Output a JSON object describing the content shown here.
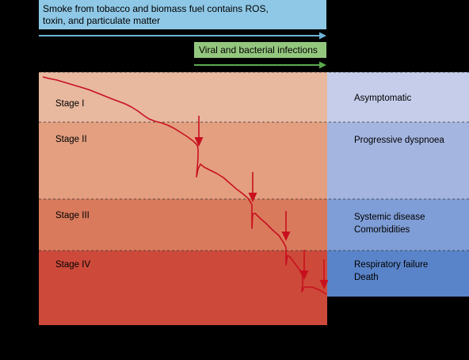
{
  "banners": {
    "smoke": "Smoke from tobacco and biomass fuel contains ROS,\ntoxin, and particulate matter",
    "infections": "Viral and bacterial infections"
  },
  "stages": [
    {
      "label": "Stage I",
      "color": "#e8b89f"
    },
    {
      "label": "Stage II",
      "color": "#e39f80"
    },
    {
      "label": "Stage III",
      "color": "#d97a5c"
    },
    {
      "label": "Stage IV",
      "color": "#cd4a3a"
    }
  ],
  "symptoms": [
    {
      "line1": "Asymptomatic",
      "line2": "",
      "color": "#c5cdea"
    },
    {
      "line1": "Progressive dyspnoea",
      "line2": "",
      "color": "#a4b5e0"
    },
    {
      "line1": "Systemic disease",
      "line2": "Comorbidities",
      "color": "#7f9dd6"
    },
    {
      "line1": "Respiratory failure",
      "line2": "Death",
      "color": "#5a84c9"
    }
  ],
  "colors": {
    "decline_curve": "#c8101e",
    "arrow_smoke": "#6fb3da",
    "arrow_infect": "#5aab4c"
  }
}
